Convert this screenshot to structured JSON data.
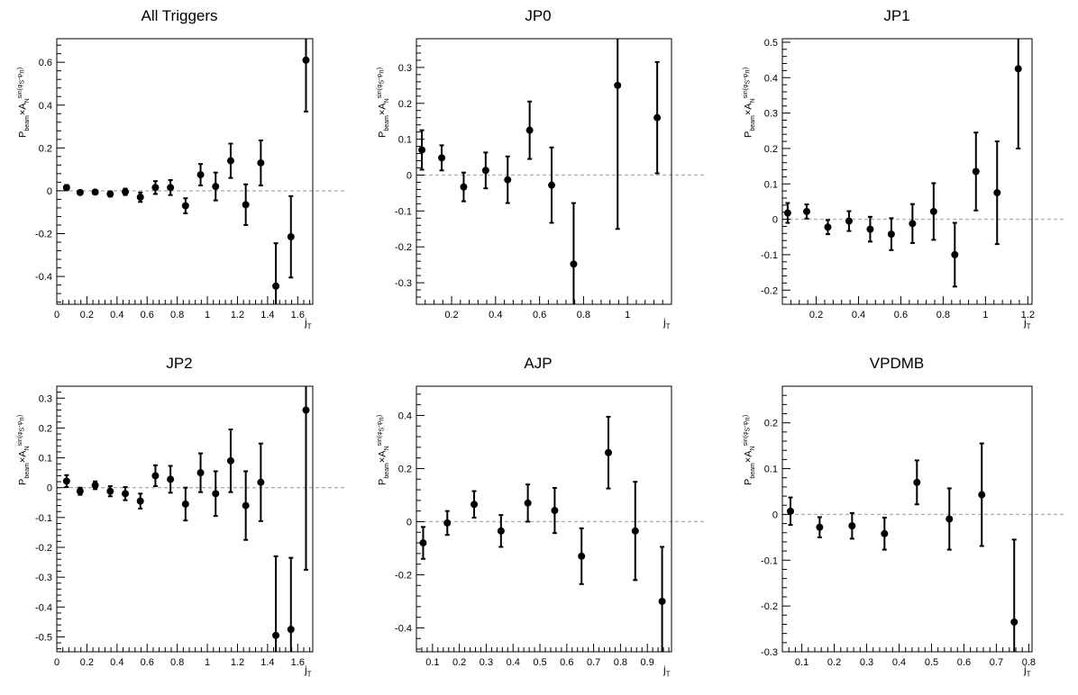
{
  "colors": {
    "marker": "#000000",
    "zero_line": "#b0b0b0",
    "frame": "#000000"
  },
  "chart_data": [
    {
      "type": "scatter",
      "title": "All Triggers",
      "xlabel": "j_T",
      "ylabel": "P_beam × A_N^sin(φS−φπ)",
      "xlim": [
        0,
        1.7
      ],
      "ylim": [
        -0.53,
        0.71
      ],
      "xticks": [
        0,
        0.2,
        0.4,
        0.6,
        0.8,
        1,
        1.2,
        1.4,
        1.6
      ],
      "xtick_labels": [
        "0",
        "0.2",
        "0.4",
        "0.6",
        "0.8",
        "1",
        "1.2",
        "1.4",
        "1.6"
      ],
      "yticks": [
        -0.4,
        -0.2,
        0,
        0.2,
        0.4,
        0.6
      ],
      "ytick_labels": [
        "-0.4",
        "-0.2",
        "0",
        "0.2",
        "0.4",
        "0.6"
      ],
      "points": [
        {
          "x": 0.065,
          "y": 0.015,
          "err": 0.012
        },
        {
          "x": 0.155,
          "y": -0.008,
          "err": 0.01
        },
        {
          "x": 0.255,
          "y": -0.006,
          "err": 0.01
        },
        {
          "x": 0.355,
          "y": -0.015,
          "err": 0.012
        },
        {
          "x": 0.455,
          "y": -0.005,
          "err": 0.015
        },
        {
          "x": 0.555,
          "y": -0.03,
          "err": 0.022
        },
        {
          "x": 0.655,
          "y": 0.015,
          "err": 0.03
        },
        {
          "x": 0.755,
          "y": 0.015,
          "err": 0.035
        },
        {
          "x": 0.855,
          "y": -0.07,
          "err": 0.035
        },
        {
          "x": 0.955,
          "y": 0.075,
          "err": 0.05
        },
        {
          "x": 1.055,
          "y": 0.02,
          "err": 0.065
        },
        {
          "x": 1.155,
          "y": 0.14,
          "err": 0.08
        },
        {
          "x": 1.255,
          "y": -0.065,
          "err": 0.095
        },
        {
          "x": 1.355,
          "y": 0.13,
          "err": 0.105
        },
        {
          "x": 1.455,
          "y": -0.445,
          "err": 0.2
        },
        {
          "x": 1.555,
          "y": -0.215,
          "err": 0.19
        },
        {
          "x": 1.655,
          "y": 0.61,
          "err": 0.24
        }
      ]
    },
    {
      "type": "scatter",
      "title": "JP0",
      "xlabel": "j_T",
      "ylabel": "P_beam × A_N^sin(φS−φπ)",
      "xlim": [
        0.04,
        1.2
      ],
      "ylim": [
        -0.36,
        0.38
      ],
      "xticks": [
        0.2,
        0.4,
        0.6,
        0.8,
        1
      ],
      "xtick_labels": [
        "0.2",
        "0.4",
        "0.6",
        "0.8",
        "1"
      ],
      "yticks": [
        -0.3,
        -0.2,
        -0.1,
        0,
        0.1,
        0.2,
        0.3
      ],
      "ytick_labels": [
        "-0.3",
        "-0.2",
        "-0.1",
        "0",
        "0.1",
        "0.2",
        "0.3"
      ],
      "points": [
        {
          "x": 0.065,
          "y": 0.07,
          "err": 0.055
        },
        {
          "x": 0.155,
          "y": 0.048,
          "err": 0.035
        },
        {
          "x": 0.255,
          "y": -0.033,
          "err": 0.04
        },
        {
          "x": 0.355,
          "y": 0.013,
          "err": 0.05
        },
        {
          "x": 0.455,
          "y": -0.013,
          "err": 0.065
        },
        {
          "x": 0.555,
          "y": 0.125,
          "err": 0.08
        },
        {
          "x": 0.655,
          "y": -0.028,
          "err": 0.105
        },
        {
          "x": 0.755,
          "y": -0.248,
          "err": 0.17
        },
        {
          "x": 0.955,
          "y": 0.25,
          "err": 0.4
        },
        {
          "x": 1.135,
          "y": 0.16,
          "err": 0.155
        }
      ]
    },
    {
      "type": "scatter",
      "title": "JP1",
      "xlabel": "j_T",
      "ylabel": "P_beam × A_N^sin(φS−φπ)",
      "xlim": [
        0.04,
        1.22
      ],
      "ylim": [
        -0.24,
        0.51
      ],
      "xticks": [
        0.2,
        0.4,
        0.6,
        0.8,
        1,
        1.2
      ],
      "xtick_labels": [
        "0.2",
        "0.4",
        "0.6",
        "0.8",
        "1",
        "1.2"
      ],
      "yticks": [
        -0.2,
        -0.1,
        0,
        0.1,
        0.2,
        0.3,
        0.4,
        0.5
      ],
      "ytick_labels": [
        "-0.2",
        "-0.1",
        "0",
        "0.1",
        "0.2",
        "0.3",
        "0.4",
        "0.5"
      ],
      "points": [
        {
          "x": 0.065,
          "y": 0.018,
          "err": 0.028
        },
        {
          "x": 0.155,
          "y": 0.022,
          "err": 0.02
        },
        {
          "x": 0.255,
          "y": -0.022,
          "err": 0.02
        },
        {
          "x": 0.355,
          "y": -0.005,
          "err": 0.028
        },
        {
          "x": 0.455,
          "y": -0.028,
          "err": 0.035
        },
        {
          "x": 0.555,
          "y": -0.042,
          "err": 0.045
        },
        {
          "x": 0.655,
          "y": -0.012,
          "err": 0.055
        },
        {
          "x": 0.755,
          "y": 0.022,
          "err": 0.08
        },
        {
          "x": 0.855,
          "y": -0.1,
          "err": 0.09
        },
        {
          "x": 0.955,
          "y": 0.135,
          "err": 0.11
        },
        {
          "x": 1.055,
          "y": 0.075,
          "err": 0.145
        },
        {
          "x": 1.155,
          "y": 0.425,
          "err": 0.225
        }
      ]
    },
    {
      "type": "scatter",
      "title": "JP2",
      "xlabel": "j_T",
      "ylabel": "P_beam × A_N^sin(φS−φπ)",
      "xlim": [
        0,
        1.7
      ],
      "ylim": [
        -0.55,
        0.34
      ],
      "xticks": [
        0,
        0.2,
        0.4,
        0.6,
        0.8,
        1,
        1.2,
        1.4,
        1.6
      ],
      "xtick_labels": [
        "0",
        "0.2",
        "0.4",
        "0.6",
        "0.8",
        "1",
        "1.2",
        "1.4",
        "1.6"
      ],
      "yticks": [
        -0.5,
        -0.4,
        -0.3,
        -0.2,
        -0.1,
        0,
        0.1,
        0.2,
        0.3
      ],
      "ytick_labels": [
        "-0.5",
        "-0.4",
        "-0.3",
        "-0.2",
        "-0.1",
        "0",
        "0.1",
        "0.2",
        "0.3"
      ],
      "points": [
        {
          "x": 0.065,
          "y": 0.022,
          "err": 0.02
        },
        {
          "x": 0.155,
          "y": -0.012,
          "err": 0.012
        },
        {
          "x": 0.255,
          "y": 0.008,
          "err": 0.013
        },
        {
          "x": 0.355,
          "y": -0.012,
          "err": 0.017
        },
        {
          "x": 0.455,
          "y": -0.02,
          "err": 0.022
        },
        {
          "x": 0.555,
          "y": -0.045,
          "err": 0.025
        },
        {
          "x": 0.655,
          "y": 0.04,
          "err": 0.035
        },
        {
          "x": 0.755,
          "y": 0.028,
          "err": 0.045
        },
        {
          "x": 0.855,
          "y": -0.055,
          "err": 0.055
        },
        {
          "x": 0.955,
          "y": 0.05,
          "err": 0.065
        },
        {
          "x": 1.055,
          "y": -0.02,
          "err": 0.075
        },
        {
          "x": 1.155,
          "y": 0.09,
          "err": 0.105
        },
        {
          "x": 1.255,
          "y": -0.06,
          "err": 0.115
        },
        {
          "x": 1.355,
          "y": 0.018,
          "err": 0.13
        },
        {
          "x": 1.455,
          "y": -0.495,
          "err": 0.265
        },
        {
          "x": 1.555,
          "y": -0.475,
          "err": 0.24
        },
        {
          "x": 1.655,
          "y": 0.26,
          "err": 0.535
        }
      ]
    },
    {
      "type": "scatter",
      "title": "AJP",
      "xlabel": "j_T",
      "ylabel": "P_beam × A_N^sin(φS−φπ)",
      "xlim": [
        0.04,
        0.99
      ],
      "ylim": [
        -0.49,
        0.51
      ],
      "xticks": [
        0.1,
        0.2,
        0.3,
        0.4,
        0.5,
        0.6,
        0.7,
        0.8,
        0.9
      ],
      "xtick_labels": [
        "0.1",
        "0.2",
        "0.3",
        "0.4",
        "0.5",
        "0.6",
        "0.7",
        "0.8",
        "0.9"
      ],
      "yticks": [
        -0.4,
        -0.2,
        0,
        0.2,
        0.4
      ],
      "ytick_labels": [
        "-0.4",
        "-0.2",
        "0",
        "0.2",
        "0.4"
      ],
      "points": [
        {
          "x": 0.065,
          "y": -0.08,
          "err": 0.06
        },
        {
          "x": 0.155,
          "y": -0.005,
          "err": 0.045
        },
        {
          "x": 0.255,
          "y": 0.065,
          "err": 0.05
        },
        {
          "x": 0.355,
          "y": -0.035,
          "err": 0.06
        },
        {
          "x": 0.455,
          "y": 0.07,
          "err": 0.07
        },
        {
          "x": 0.555,
          "y": 0.042,
          "err": 0.085
        },
        {
          "x": 0.655,
          "y": -0.13,
          "err": 0.105
        },
        {
          "x": 0.755,
          "y": 0.26,
          "err": 0.135
        },
        {
          "x": 0.855,
          "y": -0.035,
          "err": 0.185
        },
        {
          "x": 0.955,
          "y": -0.3,
          "err": 0.205
        }
      ]
    },
    {
      "type": "scatter",
      "title": "VPDMB",
      "xlabel": "j_T",
      "ylabel": "P_beam × A_N^sin(φS−φπ)",
      "xlim": [
        0.04,
        0.81
      ],
      "ylim": [
        -0.3,
        0.28
      ],
      "xticks": [
        0.1,
        0.2,
        0.3,
        0.4,
        0.5,
        0.6,
        0.7,
        0.8
      ],
      "xtick_labels": [
        "0.1",
        "0.2",
        "0.3",
        "0.4",
        "0.5",
        "0.6",
        "0.7",
        "0.8"
      ],
      "yticks": [
        -0.3,
        -0.2,
        -0.1,
        0,
        0.1,
        0.2
      ],
      "ytick_labels": [
        "-0.3",
        "-0.2",
        "-0.1",
        "0",
        "0.1",
        "0.2"
      ],
      "points": [
        {
          "x": 0.065,
          "y": 0.007,
          "err": 0.03
        },
        {
          "x": 0.155,
          "y": -0.028,
          "err": 0.022
        },
        {
          "x": 0.255,
          "y": -0.025,
          "err": 0.028
        },
        {
          "x": 0.355,
          "y": -0.042,
          "err": 0.035
        },
        {
          "x": 0.455,
          "y": 0.07,
          "err": 0.048
        },
        {
          "x": 0.555,
          "y": -0.01,
          "err": 0.067
        },
        {
          "x": 0.655,
          "y": 0.043,
          "err": 0.112
        },
        {
          "x": 0.755,
          "y": -0.235,
          "err": 0.18
        }
      ]
    }
  ]
}
